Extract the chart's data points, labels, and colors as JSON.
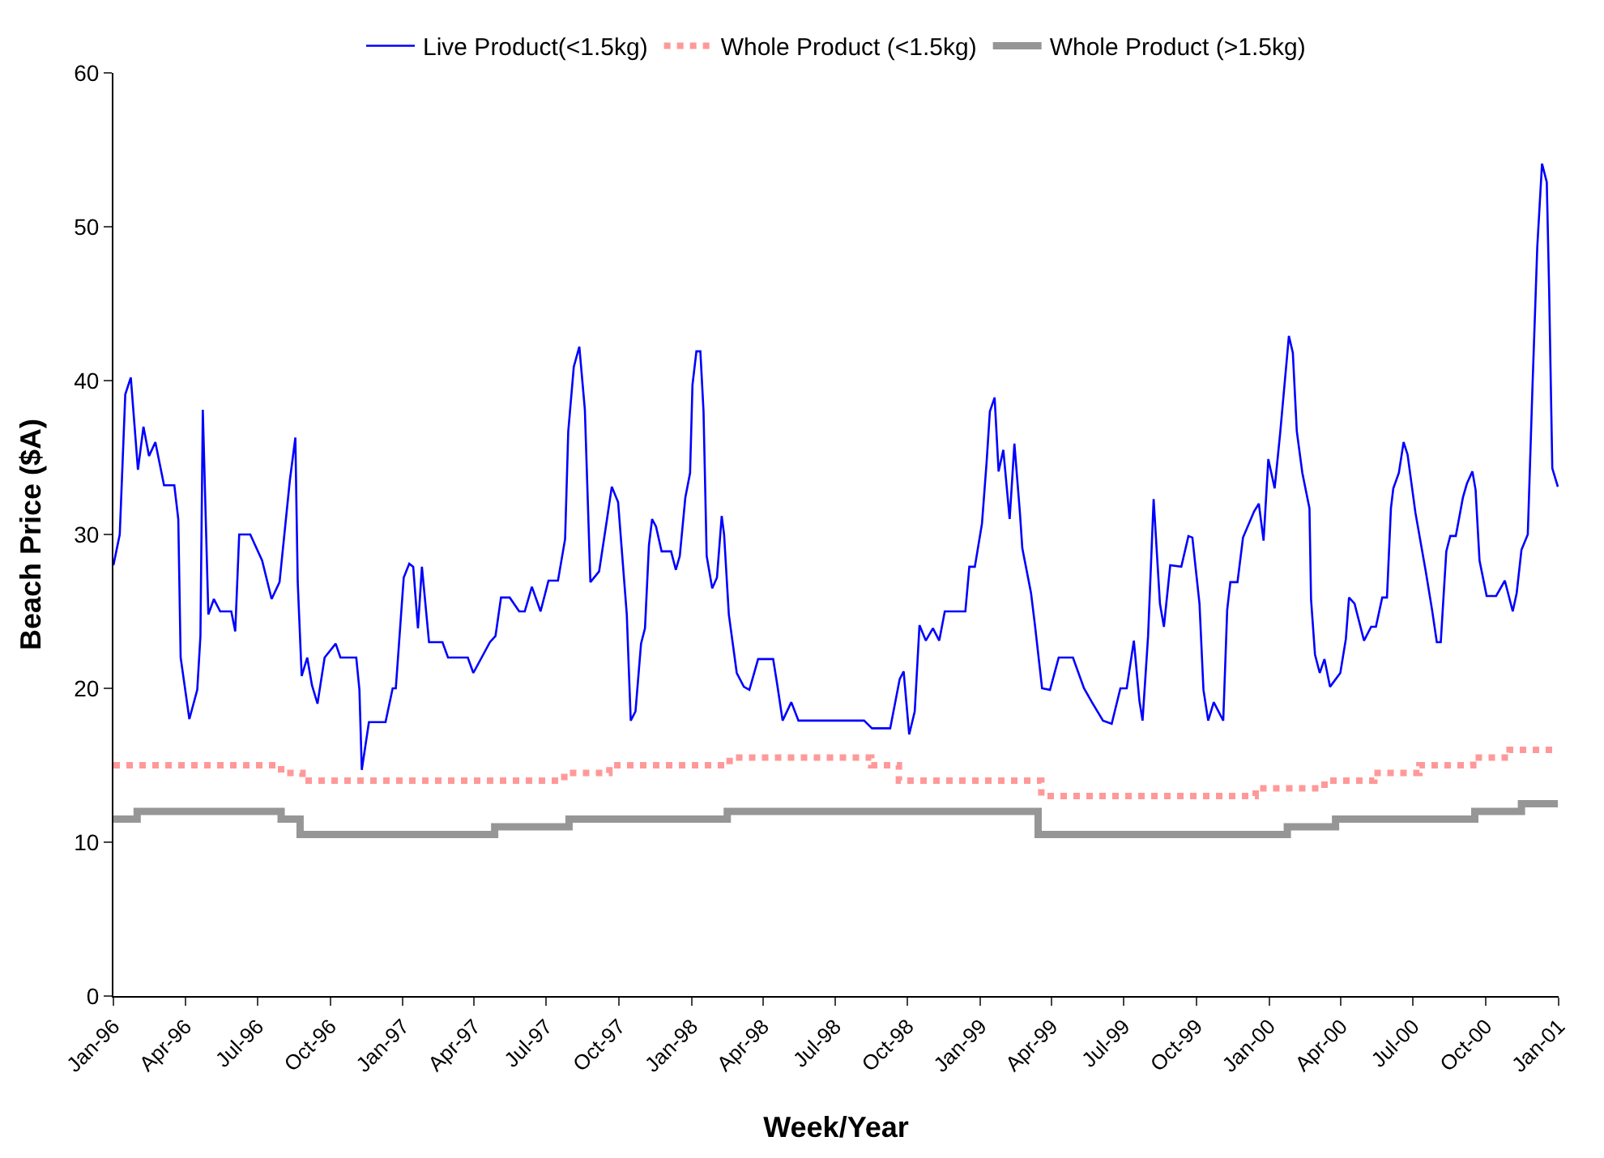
{
  "chart_data": {
    "type": "line",
    "xlabel": "Week/Year",
    "ylabel": "Beach Price ($A)",
    "xlim": [
      "1996-01-01",
      "2001-01-01"
    ],
    "ylim": [
      0,
      60
    ],
    "yticks": [
      0,
      10,
      20,
      30,
      40,
      50,
      60
    ],
    "xticks": [
      {
        "value": "1996-01-01",
        "label": "Jan-96"
      },
      {
        "value": "1996-04-01",
        "label": "Apr-96"
      },
      {
        "value": "1996-07-01",
        "label": "Jul-96"
      },
      {
        "value": "1996-10-01",
        "label": "Oct-96"
      },
      {
        "value": "1997-01-01",
        "label": "Jan-97"
      },
      {
        "value": "1997-04-01",
        "label": "Apr-97"
      },
      {
        "value": "1997-07-01",
        "label": "Jul-97"
      },
      {
        "value": "1997-10-01",
        "label": "Oct-97"
      },
      {
        "value": "1998-01-01",
        "label": "Jan-98"
      },
      {
        "value": "1998-04-01",
        "label": "Apr-98"
      },
      {
        "value": "1998-07-01",
        "label": "Jul-98"
      },
      {
        "value": "1998-10-01",
        "label": "Oct-98"
      },
      {
        "value": "1999-01-01",
        "label": "Jan-99"
      },
      {
        "value": "1999-04-01",
        "label": "Apr-99"
      },
      {
        "value": "1999-07-01",
        "label": "Jul-99"
      },
      {
        "value": "1999-10-01",
        "label": "Oct-99"
      },
      {
        "value": "2000-01-01",
        "label": "Jan-00"
      },
      {
        "value": "2000-04-01",
        "label": "Apr-00"
      },
      {
        "value": "2000-07-01",
        "label": "Jul-00"
      },
      {
        "value": "2000-10-01",
        "label": "Oct-00"
      },
      {
        "value": "2001-01-01",
        "label": "Jan-01"
      }
    ],
    "grid": false,
    "legend": "top",
    "marker": "none",
    "series": [
      {
        "name": "Live Product(<1.5kg)",
        "color": "#0000ff",
        "line_style": "solid",
        "x": [
          "1996-01-01",
          "1996-01-09",
          "1996-01-16",
          "1996-01-23",
          "1996-02-01",
          "1996-02-08",
          "1996-02-15",
          "1996-02-23",
          "1996-03-05",
          "1996-03-18",
          "1996-03-23",
          "1996-03-26",
          "1996-04-06",
          "1996-04-16",
          "1996-04-20",
          "1996-04-23",
          "1996-04-30",
          "1996-05-07",
          "1996-05-15",
          "1996-05-29",
          "1996-06-03",
          "1996-06-08",
          "1996-06-22",
          "1996-07-07",
          "1996-07-19",
          "1996-07-29",
          "1996-08-11",
          "1996-08-18",
          "1996-08-21",
          "1996-08-26",
          "1996-09-02",
          "1996-09-08",
          "1996-09-15",
          "1996-09-24",
          "1996-10-08",
          "1996-10-14",
          "1996-11-03",
          "1996-11-07",
          "1996-11-10",
          "1996-11-19",
          "1996-12-10",
          "1996-12-19",
          "1996-12-23",
          "1997-01-02",
          "1997-01-09",
          "1997-01-14",
          "1997-01-20",
          "1997-01-25",
          "1997-02-03",
          "1997-02-20",
          "1997-02-27",
          "1997-03-24",
          "1997-03-31",
          "1997-04-21",
          "1997-04-28",
          "1997-05-05",
          "1997-05-16",
          "1997-05-28",
          "1997-06-04",
          "1997-06-13",
          "1997-06-24",
          "1997-07-04",
          "1997-07-16",
          "1997-07-25",
          "1997-07-29",
          "1997-08-05",
          "1997-08-12",
          "1997-08-19",
          "1997-08-26",
          "1997-09-06",
          "1997-09-16",
          "1997-09-22",
          "1997-09-30",
          "1997-10-11",
          "1997-10-16",
          "1997-10-22",
          "1997-10-29",
          "1997-11-03",
          "1997-11-08",
          "1997-11-12",
          "1997-11-17",
          "1997-11-24",
          "1997-12-06",
          "1997-12-12",
          "1997-12-17",
          "1997-12-24",
          "1997-12-30",
          "1998-01-02",
          "1998-01-07",
          "1998-01-12",
          "1998-01-16",
          "1998-01-20",
          "1998-01-27",
          "1998-02-02",
          "1998-02-08",
          "1998-02-11",
          "1998-02-17",
          "1998-02-27",
          "1998-03-08",
          "1998-03-15",
          "1998-03-26",
          "1998-04-14",
          "1998-04-19",
          "1998-04-26",
          "1998-05-07",
          "1998-05-16",
          "1998-08-07",
          "1998-08-17",
          "1998-09-09",
          "1998-09-21",
          "1998-09-26",
          "1998-10-03",
          "1998-10-10",
          "1998-10-16",
          "1998-10-24",
          "1998-11-02",
          "1998-11-10",
          "1998-11-17",
          "1998-12-13",
          "1998-12-18",
          "1998-12-25",
          "1999-01-03",
          "1999-01-09",
          "1999-01-13",
          "1999-01-19",
          "1999-01-24",
          "1999-01-30",
          "1999-02-07",
          "1999-02-13",
          "1999-02-20",
          "1999-02-23",
          "1999-03-06",
          "1999-03-11",
          "1999-03-20",
          "1999-03-30",
          "1999-04-10",
          "1999-04-28",
          "1999-05-12",
          "1999-05-22",
          "1999-06-05",
          "1999-06-16",
          "1999-06-27",
          "1999-07-05",
          "1999-07-14",
          "1999-07-21",
          "1999-07-25",
          "1999-08-01",
          "1999-08-08",
          "1999-08-16",
          "1999-08-21",
          "1999-08-29",
          "1999-09-12",
          "1999-09-21",
          "1999-09-26",
          "1999-10-05",
          "1999-10-10",
          "1999-10-16",
          "1999-10-23",
          "1999-11-04",
          "1999-11-09",
          "1999-11-13",
          "1999-11-22",
          "1999-11-29",
          "1999-12-13",
          "1999-12-19",
          "1999-12-25",
          "1999-12-31",
          "2000-01-08",
          "2000-01-15",
          "2000-01-26",
          "2000-01-31",
          "2000-02-05",
          "2000-02-12",
          "2000-02-21",
          "2000-02-23",
          "2000-02-28",
          "2000-03-05",
          "2000-03-11",
          "2000-03-18",
          "2000-03-31",
          "2000-04-07",
          "2000-04-11",
          "2000-04-18",
          "2000-04-30",
          "2000-05-09",
          "2000-05-15",
          "2000-05-23",
          "2000-05-29",
          "2000-06-03",
          "2000-06-06",
          "2000-06-13",
          "2000-06-19",
          "2000-06-24",
          "2000-07-04",
          "2000-07-17",
          "2000-07-25",
          "2000-07-31",
          "2000-08-05",
          "2000-08-12",
          "2000-08-17",
          "2000-08-24",
          "2000-09-02",
          "2000-09-07",
          "2000-09-14",
          "2000-09-18",
          "2000-09-23",
          "2000-10-02",
          "2000-10-14",
          "2000-10-25",
          "2000-11-04",
          "2000-11-09",
          "2000-11-15",
          "2000-11-23",
          "2000-11-29",
          "2000-12-05",
          "2000-12-11",
          "2000-12-17",
          "2000-12-20",
          "2000-12-24",
          "2000-12-31"
        ],
        "values": [
          28,
          30,
          39.1,
          40.2,
          34.2,
          37,
          35.1,
          36,
          33.2,
          33.2,
          31,
          22,
          18,
          19.9,
          23.4,
          38.1,
          24.8,
          25.8,
          25,
          25,
          23.7,
          30,
          30,
          28.3,
          25.8,
          26.9,
          33.5,
          36.3,
          26.9,
          20.8,
          22,
          20.2,
          19,
          22,
          22.9,
          22,
          22,
          19.9,
          14.7,
          17.8,
          17.8,
          20,
          20,
          27.2,
          28.1,
          27.9,
          23.9,
          27.9,
          23,
          23,
          22,
          22,
          21,
          23,
          23.4,
          25.9,
          25.9,
          25,
          25,
          26.6,
          25,
          27,
          27,
          29.7,
          36.7,
          40.9,
          42.2,
          38.1,
          26.9,
          27.6,
          31,
          33.1,
          32.1,
          24.8,
          17.9,
          18.5,
          22.9,
          23.9,
          29.3,
          31,
          30.5,
          28.9,
          28.9,
          27.7,
          28.6,
          32.4,
          34,
          39.7,
          41.9,
          41.9,
          38,
          28.6,
          26.5,
          27.2,
          31.2,
          30,
          24.8,
          21,
          20.1,
          19.9,
          21.9,
          21.9,
          20.3,
          17.9,
          19.1,
          17.9,
          17.9,
          17.4,
          17.4,
          20.6,
          21.1,
          17,
          18.5,
          24.1,
          23.1,
          23.9,
          23.1,
          25,
          25,
          27.9,
          27.9,
          30.7,
          34.8,
          38,
          38.9,
          34.1,
          35.5,
          31,
          35.9,
          31.4,
          29.1,
          26.2,
          24.1,
          20,
          19.9,
          22,
          22,
          20,
          19.1,
          17.9,
          17.7,
          20,
          20,
          23.1,
          19.2,
          17.9,
          23.4,
          32.3,
          25.5,
          24,
          28,
          27.9,
          29.9,
          29.8,
          25.5,
          19.9,
          17.9,
          19.1,
          17.9,
          25.1,
          26.9,
          26.9,
          29.8,
          31.5,
          32,
          29.6,
          34.9,
          33,
          36.6,
          42.9,
          41.8,
          36.7,
          34,
          31.7,
          25.8,
          22.2,
          21,
          21.9,
          20.1,
          21,
          23.2,
          25.9,
          25.5,
          23.1,
          24,
          24,
          25.9,
          25.9,
          31.7,
          33,
          34,
          36,
          35.2,
          31.4,
          27.6,
          25.1,
          23,
          23,
          28.9,
          29.9,
          29.9,
          32.4,
          33.3,
          34.1,
          32.9,
          28.3,
          26,
          26,
          27,
          25,
          26.2,
          29,
          30,
          39.7,
          48.7,
          54.1,
          52.9,
          45.9,
          34.3,
          33.1
        ]
      },
      {
        "name": "Whole Product (<1.5kg)",
        "color": "#ff9999",
        "type": "step",
        "line_style": "dotted",
        "x": [
          "1996-01-01",
          "1996-07-31",
          "1996-08-27",
          "1997-07-24",
          "1997-09-19",
          "1998-02-18",
          "1998-08-16",
          "1998-09-20",
          "1999-03-19",
          "1999-12-15",
          "2000-03-11",
          "2000-05-13",
          "2000-07-09",
          "2000-09-15",
          "2000-10-31",
          "2000-12-31"
        ],
        "values": [
          15,
          14.5,
          14,
          14.5,
          15,
          15.5,
          15,
          14,
          13,
          13.5,
          14,
          14.5,
          15,
          15.5,
          16,
          16
        ]
      },
      {
        "name": "Whole Product (>1.5kg)",
        "color": "#969696",
        "type": "step",
        "line_style": "solid",
        "x": [
          "1996-01-01",
          "1996-01-31",
          "1996-07-31",
          "1996-08-24",
          "1997-04-27",
          "1997-07-30",
          "1998-02-15",
          "1999-03-15",
          "2000-01-24",
          "2000-03-25",
          "2000-09-17",
          "2000-11-15",
          "2000-12-31"
        ],
        "values": [
          11.5,
          12,
          11.5,
          10.5,
          11,
          11.5,
          12,
          10.5,
          11,
          11.5,
          12,
          12.5,
          12.5
        ]
      }
    ]
  }
}
